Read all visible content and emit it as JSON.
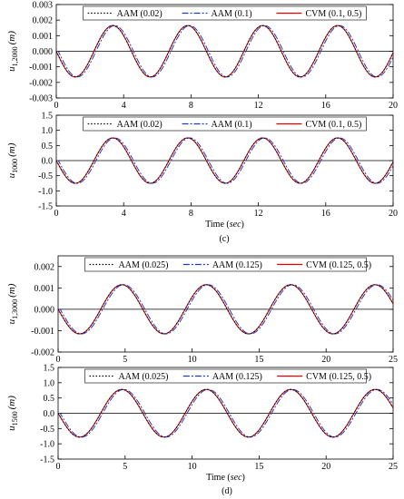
{
  "figure": {
    "panel_c_caption": "(c)",
    "panel_d_caption": "(d)"
  },
  "chart_data": [
    {
      "id": "c-top",
      "type": "line",
      "ylabel_var": "u",
      "ylabel_sub": "1,2000",
      "ylabel_unit": "(m)",
      "xlabel": "",
      "xlim": [
        0,
        20
      ],
      "ylim": [
        -0.003,
        0.003
      ],
      "xticks": [
        0,
        4,
        8,
        12,
        16,
        20
      ],
      "yticks": [
        -0.003,
        -0.002,
        -0.001,
        0.0,
        0.001,
        0.002,
        0.003
      ],
      "ytick_labels": [
        "-0.003",
        "-0.002",
        "-0.001",
        "0.000",
        "0.001",
        "0.002",
        "0.003"
      ],
      "wave": {
        "amplitude": 0.00165,
        "period": 4.45,
        "first_peak_time": 3.35
      },
      "legend": {
        "position": "top"
      },
      "grid": false,
      "series": [
        {
          "name": "AAM (0.02)",
          "color": "#000000",
          "dash": "1.5,2",
          "phase_shift": 0.0
        },
        {
          "name": "AAM (0.1)",
          "color": "#1f3fbf",
          "dash": "7,2,2,2",
          "phase_shift": 0.12
        },
        {
          "name": "CVM (0.1, 0.5)",
          "color": "#e00000",
          "dash": "",
          "phase_shift": 0.0
        }
      ]
    },
    {
      "id": "c-bottom",
      "type": "line",
      "ylabel_var": "u",
      "ylabel_sub": "1000",
      "ylabel_unit": "(m)",
      "xlabel_text": "Time (",
      "xlabel_unit": "sec",
      "xlabel_close": ")",
      "xlim": [
        0,
        20
      ],
      "ylim": [
        -1.5,
        1.5
      ],
      "xticks": [
        0,
        4,
        8,
        12,
        16,
        20
      ],
      "yticks": [
        -1.5,
        -1.0,
        -0.5,
        0.0,
        0.5,
        1.0,
        1.5
      ],
      "ytick_labels": [
        "-1.5",
        "-1.0",
        "-0.5",
        "0.0",
        "0.5",
        "1.0",
        "1.5"
      ],
      "wave": {
        "amplitude": 0.75,
        "period": 4.45,
        "first_peak_time": 3.35
      },
      "legend": {
        "position": "top"
      },
      "grid": false,
      "series": [
        {
          "name": "AAM (0.02)",
          "color": "#000000",
          "dash": "1.5,2",
          "phase_shift": 0.0
        },
        {
          "name": "AAM (0.1)",
          "color": "#1f3fbf",
          "dash": "7,2,2,2",
          "phase_shift": 0.12
        },
        {
          "name": "CVM (0.1, 0.5)",
          "color": "#e00000",
          "dash": "",
          "phase_shift": 0.0
        }
      ]
    },
    {
      "id": "d-top",
      "type": "line",
      "ylabel_var": "u",
      "ylabel_sub": "1,3000",
      "ylabel_unit": "(m)",
      "xlabel": "",
      "xlim": [
        0,
        25
      ],
      "ylim": [
        -0.002,
        0.0025
      ],
      "xticks": [
        0,
        5,
        10,
        15,
        20,
        25
      ],
      "yticks": [
        -0.002,
        -0.001,
        0.0,
        0.001,
        0.002
      ],
      "ytick_labels": [
        "-0.002",
        "-0.001",
        "0.000",
        "0.001",
        "0.002"
      ],
      "wave": {
        "amplitude": 0.00115,
        "period": 6.3,
        "first_peak_time": 4.75
      },
      "legend": {
        "position": "top"
      },
      "grid": false,
      "series": [
        {
          "name": "AAM (0.025)",
          "color": "#000000",
          "dash": "1.5,2",
          "phase_shift": 0.0
        },
        {
          "name": "AAM (0.125)",
          "color": "#1f3fbf",
          "dash": "7,2,2,2",
          "phase_shift": 0.15
        },
        {
          "name": "CVM (0.125, 0.5)",
          "color": "#e00000",
          "dash": "",
          "phase_shift": 0.0
        }
      ]
    },
    {
      "id": "d-bottom",
      "type": "line",
      "ylabel_var": "u",
      "ylabel_sub": "1500",
      "ylabel_unit": "(m)",
      "xlabel_text": "Time (",
      "xlabel_unit": "sec",
      "xlabel_close": ")",
      "xlim": [
        0,
        25
      ],
      "ylim": [
        -1.5,
        1.5
      ],
      "xticks": [
        0,
        5,
        10,
        15,
        20,
        25
      ],
      "yticks": [
        -1.5,
        -1.0,
        -0.5,
        0.0,
        0.5,
        1.0,
        1.5
      ],
      "ytick_labels": [
        "-1.5",
        "-1.0",
        "-0.5",
        "0.0",
        "0.5",
        "1.0",
        "1.5"
      ],
      "wave": {
        "amplitude": 0.78,
        "period": 6.3,
        "first_peak_time": 4.75
      },
      "legend": {
        "position": "top"
      },
      "grid": false,
      "series": [
        {
          "name": "AAM (0.025)",
          "color": "#000000",
          "dash": "1.5,2",
          "phase_shift": 0.0
        },
        {
          "name": "AAM (0.125)",
          "color": "#1f3fbf",
          "dash": "7,2,2,2",
          "phase_shift": 0.15
        },
        {
          "name": "CVM (0.125, 0.5)",
          "color": "#e00000",
          "dash": "",
          "phase_shift": 0.0
        }
      ]
    }
  ]
}
